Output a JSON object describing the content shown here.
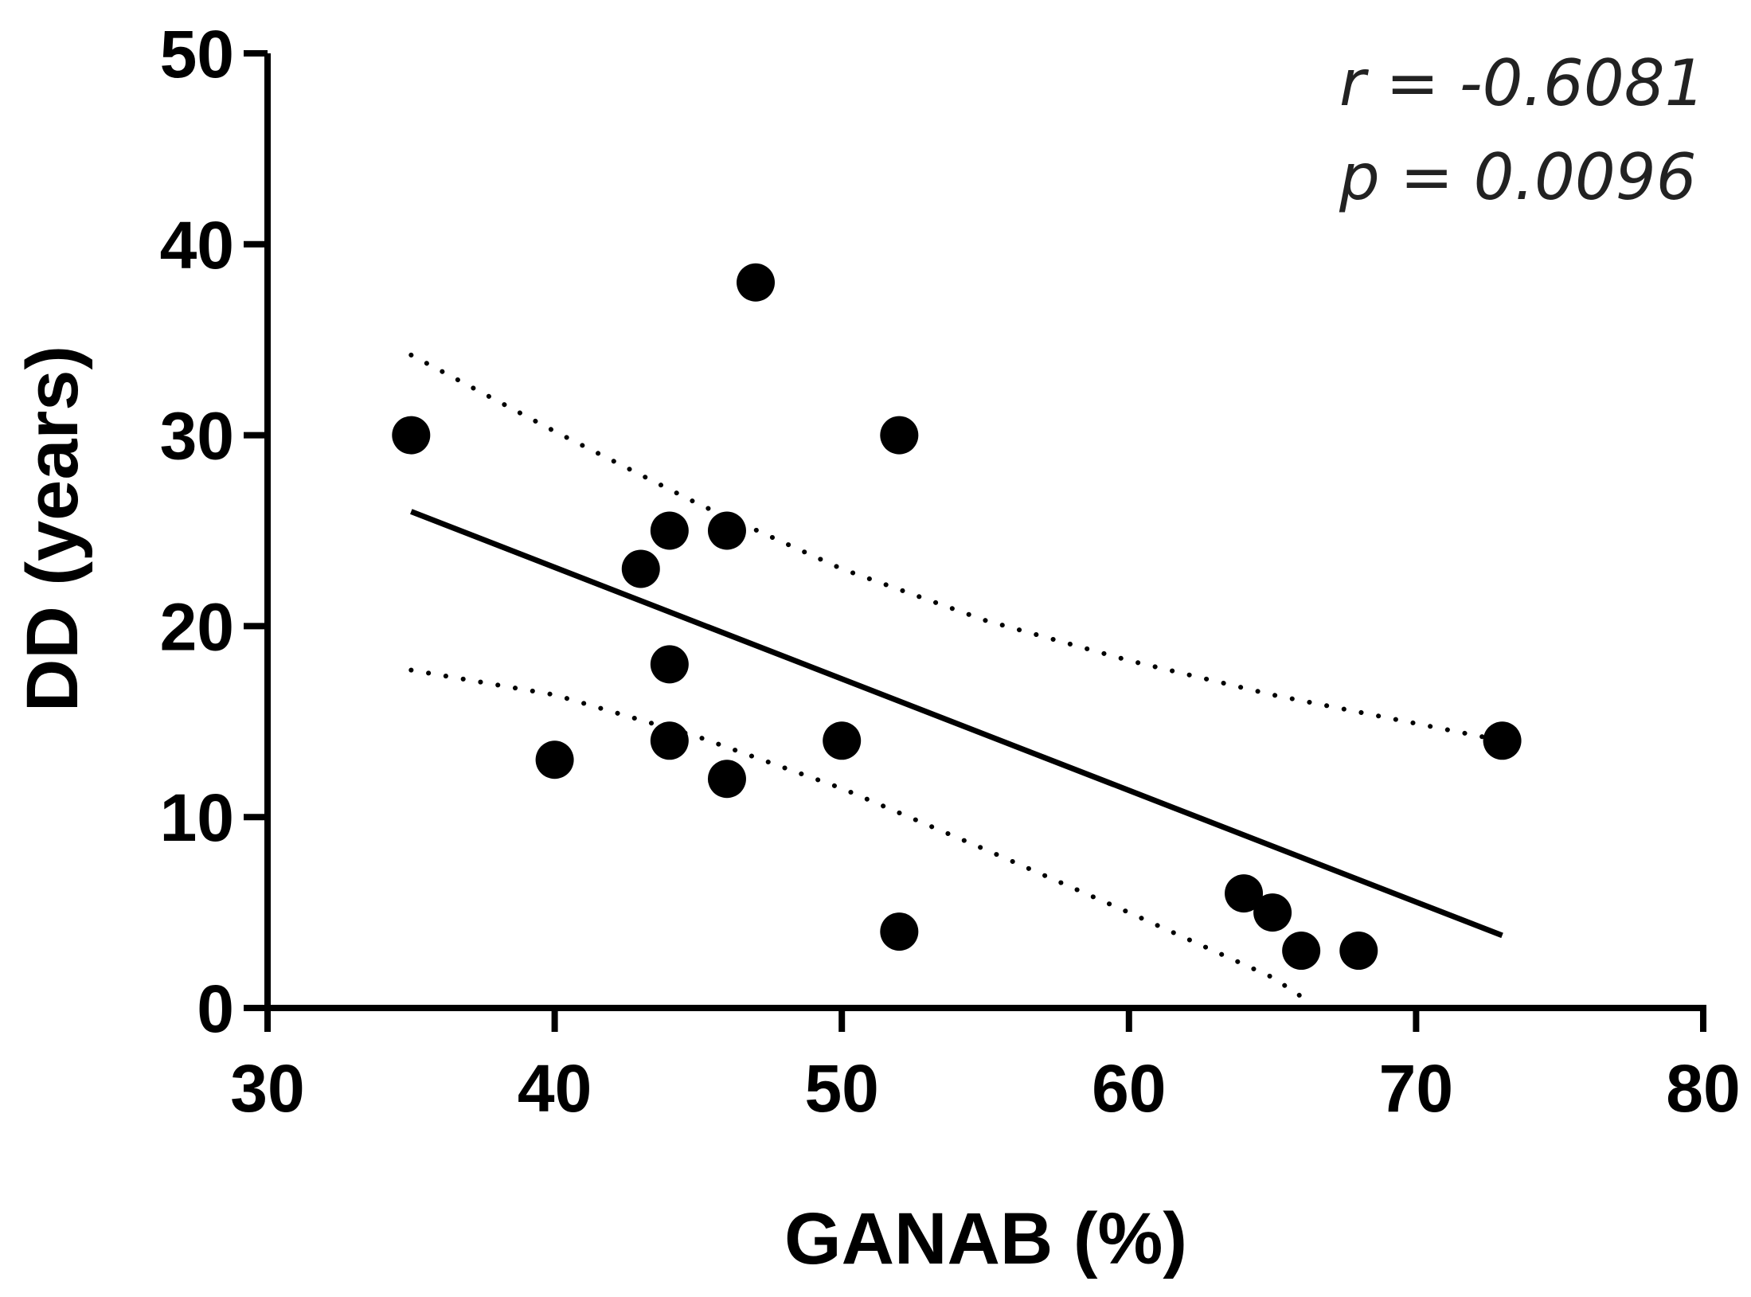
{
  "chart_data": {
    "type": "scatter",
    "title": "",
    "xlabel": "GANAB (%)",
    "ylabel": "DD (years)",
    "xlim": [
      30,
      80
    ],
    "ylim": [
      0,
      50
    ],
    "xticks": [
      "30",
      "40",
      "50",
      "60",
      "70",
      "80"
    ],
    "yticks": [
      "0",
      "10",
      "20",
      "30",
      "40",
      "50"
    ],
    "grid": false,
    "series": [
      {
        "name": "samples",
        "marker": "filled-circle",
        "color": "#000000",
        "x": [
          35,
          40,
          43,
          44,
          44,
          44,
          46,
          46,
          47,
          50,
          52,
          52,
          64,
          65,
          66,
          68,
          73
        ],
        "y": [
          30,
          13,
          23,
          25,
          18,
          14,
          25,
          12,
          38,
          14,
          30,
          4,
          6,
          5,
          3,
          3,
          14
        ]
      }
    ],
    "regression": {
      "style": "solid",
      "x": [
        35,
        73
      ],
      "y": [
        26,
        3.8
      ]
    },
    "confidence_band": {
      "style": "dotted",
      "upper": {
        "x": [
          35,
          40,
          45,
          50,
          55,
          60,
          65,
          70,
          73
        ],
        "y": [
          34.2,
          30.2,
          26.4,
          23.0,
          20.3,
          18.2,
          16.4,
          14.9,
          14.0
        ]
      },
      "lower": {
        "x": [
          35,
          40,
          45,
          50,
          55,
          60,
          65,
          66
        ],
        "y": [
          17.7,
          16.4,
          14.2,
          11.5,
          8.3,
          5.0,
          1.6,
          0.6
        ]
      }
    },
    "annotations": [
      {
        "text": "r = -0.6081",
        "position": "top-right"
      },
      {
        "text": "p = 0.0096",
        "position": "top-right"
      }
    ]
  }
}
